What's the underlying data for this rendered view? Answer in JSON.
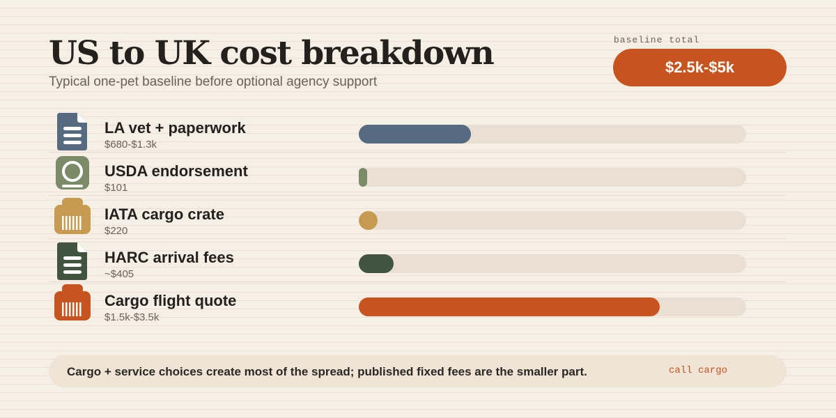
{
  "header": {
    "title": "US to UK cost breakdown",
    "subtitle": "Typical one-pet baseline before optional agency support"
  },
  "total": {
    "label": "baseline total",
    "value": "$2.5k-$5k",
    "accent": "#c7531f"
  },
  "chart_data": {
    "type": "bar",
    "orientation": "horizontal",
    "categories": [
      "LA vet + paperwork",
      "USDA endorsement",
      "IATA cargo crate",
      "HARC arrival fees",
      "Cargo flight quote"
    ],
    "value_labels": [
      "$680-$1.3k",
      "$101",
      "$220",
      "~$405",
      "$1.5k-$3.5k"
    ],
    "values": [
      1300,
      101,
      220,
      405,
      3500
    ],
    "xlim": [
      0,
      4500
    ],
    "grid": false,
    "colors": [
      "#566b80",
      "#7b8a67",
      "#c79a52",
      "#405440",
      "#c7531f"
    ],
    "icons": [
      "document-icon",
      "seal-icon",
      "crate-icon",
      "document-icon",
      "crate-icon"
    ]
  },
  "footer": {
    "note": "Cargo + service choices create most of the spread; published fixed fees are the smaller part.",
    "cta": "call cargo"
  }
}
